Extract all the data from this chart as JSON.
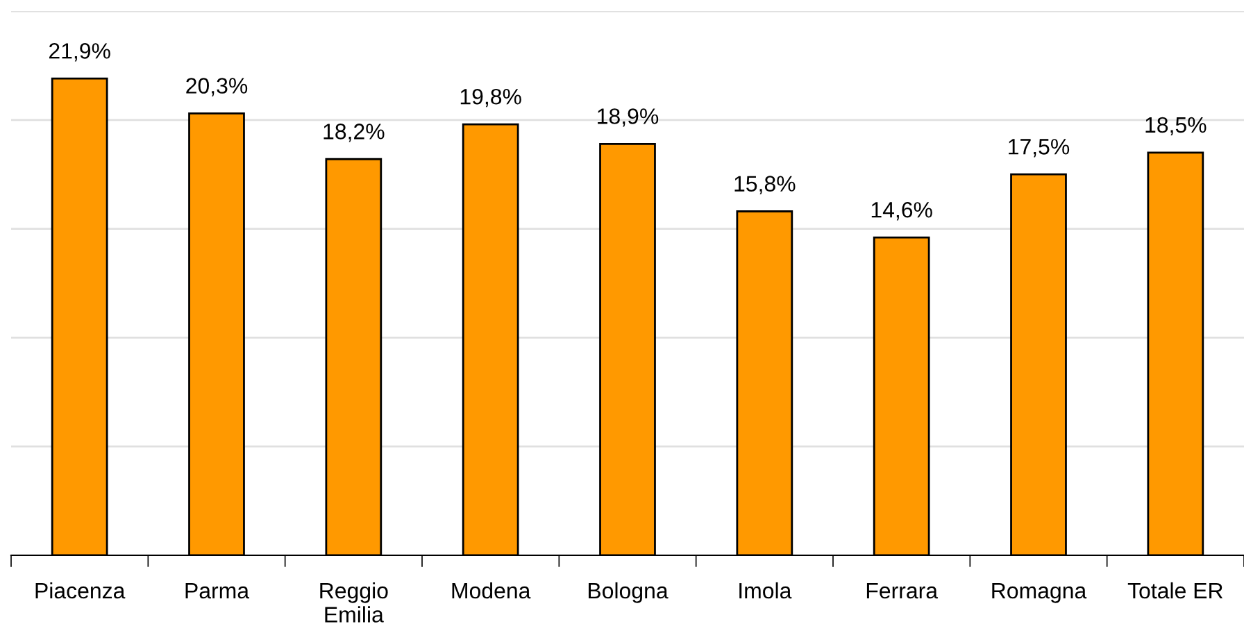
{
  "chart_data": {
    "type": "bar",
    "categories": [
      "Piacenza",
      "Parma",
      "Reggio\nEmilia",
      "Modena",
      "Bologna",
      "Imola",
      "Ferrara",
      "Romagna",
      "Totale ER"
    ],
    "values": [
      21.9,
      20.3,
      18.2,
      19.8,
      18.9,
      15.8,
      14.6,
      17.5,
      18.5
    ],
    "value_labels": [
      "21,9%",
      "20,3%",
      "18,2%",
      "19,8%",
      "18,9%",
      "15,8%",
      "14,6%",
      "17,5%",
      "18,5%"
    ],
    "color": "#ff9900",
    "ylim": [
      0,
      25
    ],
    "yticks": [
      {
        "value": 0,
        "label": null
      },
      {
        "value": 5,
        "label": null
      },
      {
        "value": 10,
        "label": null
      },
      {
        "value": 15,
        "label": null
      },
      {
        "value": 20,
        "label": null
      },
      {
        "value": 25,
        "label": null
      }
    ],
    "grid": "y",
    "tick_labels": "x",
    "legend": false
  }
}
